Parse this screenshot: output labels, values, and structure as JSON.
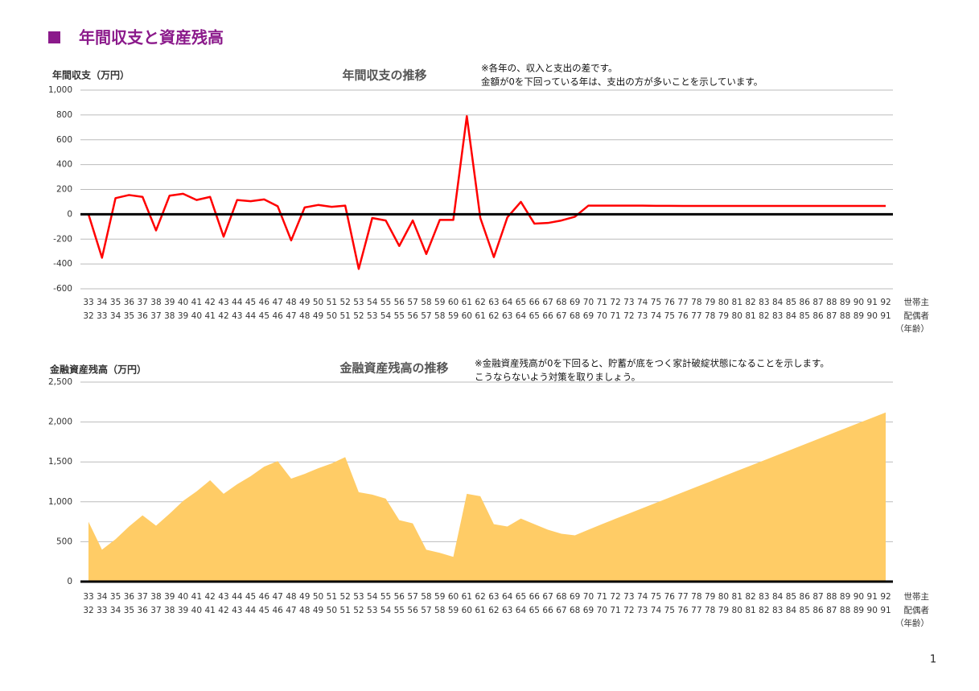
{
  "header": {
    "title": "年間収支と資産残高"
  },
  "page_number": 1,
  "chart_data": [
    {
      "type": "line",
      "title": "年間収支の推移",
      "y_label": "年間収支（万円）",
      "annotations": [
        "※各年の、収入と支出の差です。",
        "金額が0を下回っている年は、支出の方が多いことを示しています。"
      ],
      "categories": [
        "33",
        "34",
        "35",
        "36",
        "37",
        "38",
        "39",
        "40",
        "41",
        "42",
        "43",
        "44",
        "45",
        "46",
        "47",
        "48",
        "49",
        "50",
        "51",
        "52",
        "53",
        "54",
        "55",
        "56",
        "57",
        "58",
        "59",
        "60",
        "61",
        "62",
        "63",
        "64",
        "65",
        "66",
        "67",
        "68",
        "69",
        "70",
        "71",
        "72",
        "73",
        "74",
        "75",
        "76",
        "77",
        "78",
        "79",
        "80",
        "81",
        "82",
        "83",
        "84",
        "85",
        "86",
        "87",
        "88",
        "89",
        "90",
        "91",
        "92"
      ],
      "categories_spouse": [
        "32",
        "33",
        "34",
        "35",
        "36",
        "37",
        "38",
        "39",
        "40",
        "41",
        "42",
        "43",
        "44",
        "45",
        "46",
        "47",
        "48",
        "49",
        "50",
        "51",
        "52",
        "53",
        "54",
        "55",
        "56",
        "57",
        "58",
        "59",
        "60",
        "61",
        "62",
        "63",
        "64",
        "65",
        "66",
        "67",
        "68",
        "69",
        "70",
        "71",
        "72",
        "73",
        "74",
        "75",
        "76",
        "77",
        "78",
        "79",
        "80",
        "81",
        "82",
        "83",
        "84",
        "85",
        "86",
        "87",
        "88",
        "89",
        "90",
        "91"
      ],
      "x_row_labels": [
        "世帯主",
        "配偶者",
        "（年齢）"
      ],
      "values": [
        0,
        -350,
        130,
        155,
        140,
        -130,
        150,
        165,
        115,
        140,
        -180,
        115,
        105,
        120,
        65,
        -210,
        55,
        75,
        60,
        70,
        -440,
        -30,
        -50,
        -255,
        -50,
        -320,
        -45,
        -45,
        790,
        -30,
        -345,
        -25,
        100,
        -75,
        -70,
        -50,
        -20,
        70,
        70,
        70,
        70,
        70,
        68,
        68,
        67,
        67,
        67,
        67,
        67,
        67,
        67,
        67,
        67,
        67,
        67,
        67,
        67,
        67,
        67,
        67
      ],
      "color": "#ff0000",
      "ylim": [
        -600,
        1000
      ],
      "yticks": [
        -600,
        -400,
        -200,
        0,
        200,
        400,
        600,
        800,
        {
          "value": 1000,
          "label": "1,000"
        }
      ],
      "grid": true
    },
    {
      "type": "area",
      "title": "金融資産残高の推移",
      "y_label": "金融資産残高（万円）",
      "annotations": [
        "※金融資産残高が0を下回ると、貯蓄が底をつく家計破綻状態になることを示します。",
        "こうならないよう対策を取りましょう。"
      ],
      "categories": [
        "33",
        "34",
        "35",
        "36",
        "37",
        "38",
        "39",
        "40",
        "41",
        "42",
        "43",
        "44",
        "45",
        "46",
        "47",
        "48",
        "49",
        "50",
        "51",
        "52",
        "53",
        "54",
        "55",
        "56",
        "57",
        "58",
        "59",
        "60",
        "61",
        "62",
        "63",
        "64",
        "65",
        "66",
        "67",
        "68",
        "69",
        "70",
        "71",
        "72",
        "73",
        "74",
        "75",
        "76",
        "77",
        "78",
        "79",
        "80",
        "81",
        "82",
        "83",
        "84",
        "85",
        "86",
        "87",
        "88",
        "89",
        "90",
        "91",
        "92"
      ],
      "categories_spouse": [
        "32",
        "33",
        "34",
        "35",
        "36",
        "37",
        "38",
        "39",
        "40",
        "41",
        "42",
        "43",
        "44",
        "45",
        "46",
        "47",
        "48",
        "49",
        "50",
        "51",
        "52",
        "53",
        "54",
        "55",
        "56",
        "57",
        "58",
        "59",
        "60",
        "61",
        "62",
        "63",
        "64",
        "65",
        "66",
        "67",
        "68",
        "69",
        "70",
        "71",
        "72",
        "73",
        "74",
        "75",
        "76",
        "77",
        "78",
        "79",
        "80",
        "81",
        "82",
        "83",
        "84",
        "85",
        "86",
        "87",
        "88",
        "89",
        "90",
        "91"
      ],
      "x_row_labels": [
        "世帯主",
        "配偶者",
        "（年齢）"
      ],
      "values": [
        750,
        400,
        530,
        690,
        830,
        700,
        850,
        1010,
        1130,
        1270,
        1100,
        1220,
        1320,
        1440,
        1510,
        1290,
        1350,
        1420,
        1480,
        1560,
        1120,
        1090,
        1040,
        770,
        730,
        400,
        360,
        310,
        1100,
        1070,
        720,
        690,
        790,
        720,
        650,
        600,
        580,
        650,
        720,
        787,
        853,
        920,
        987,
        1053,
        1120,
        1187,
        1253,
        1320,
        1387,
        1453,
        1520,
        1587,
        1653,
        1720,
        1787,
        1853,
        1920,
        1987,
        2053,
        2120
      ],
      "color": "#ffcc66",
      "ylim": [
        0,
        2500
      ],
      "yticks": [
        0,
        500,
        {
          "value": 1000,
          "label": "1,000"
        },
        {
          "value": 1500,
          "label": "1,500"
        },
        {
          "value": 2000,
          "label": "2,000"
        },
        {
          "value": 2500,
          "label": "2,500"
        }
      ],
      "grid": true
    }
  ]
}
